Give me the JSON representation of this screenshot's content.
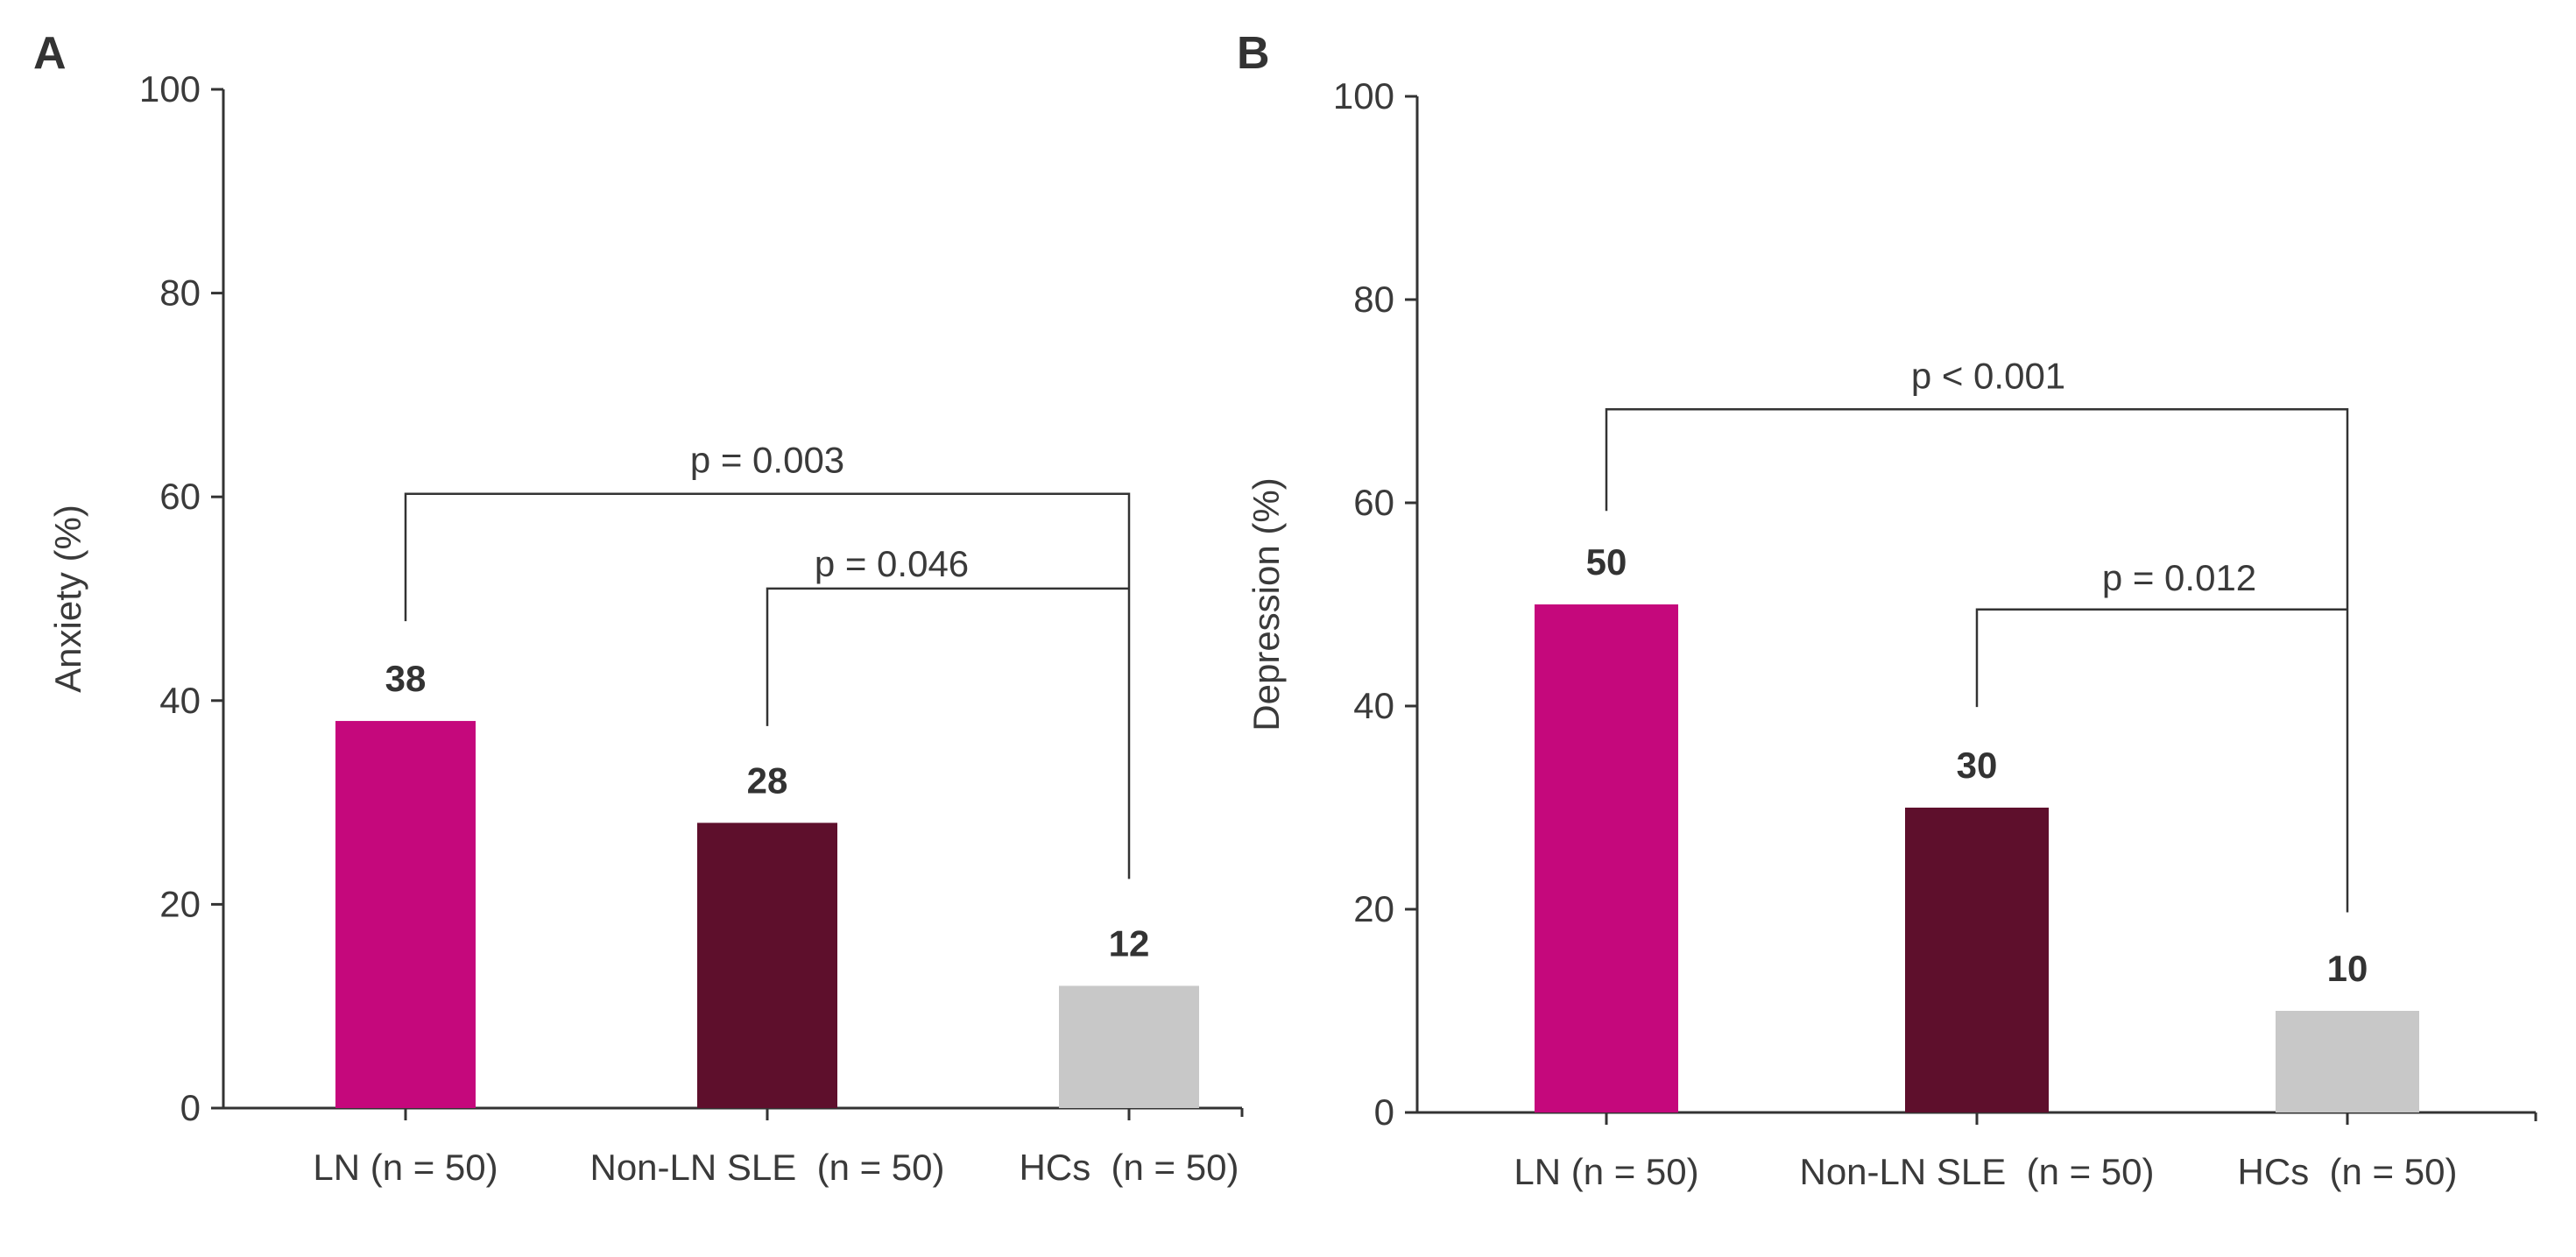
{
  "chart_data": [
    {
      "panel": "A",
      "type": "bar",
      "ylabel": "Anxiety (%)",
      "ylim": [
        0,
        100
      ],
      "yticks": [
        0,
        20,
        40,
        60,
        80,
        100
      ],
      "categories": [
        "LN (n = 50)",
        "Non-LN SLE  (n = 50)",
        "HCs  (n = 50)"
      ],
      "values": [
        38,
        28,
        12
      ],
      "colors": [
        "#c5087c",
        "#5e0f2c",
        "#c8c8c8"
      ],
      "comparisons": [
        {
          "from": 0,
          "to": 2,
          "label": "p = 0.003"
        },
        {
          "from": 1,
          "to": 2,
          "label": "p = 0.046"
        }
      ]
    },
    {
      "panel": "B",
      "type": "bar",
      "ylabel": "Depression (%)",
      "ylim": [
        0,
        100
      ],
      "yticks": [
        0,
        20,
        40,
        60,
        80,
        100
      ],
      "categories": [
        "LN (n = 50)",
        "Non-LN SLE  (n = 50)",
        "HCs  (n = 50)"
      ],
      "values": [
        50,
        30,
        10
      ],
      "colors": [
        "#c5087c",
        "#5e0f2c",
        "#c8c8c8"
      ],
      "comparisons": [
        {
          "from": 0,
          "to": 2,
          "label": "p < 0.001"
        },
        {
          "from": 1,
          "to": 2,
          "label": "p = 0.012"
        }
      ]
    }
  ]
}
